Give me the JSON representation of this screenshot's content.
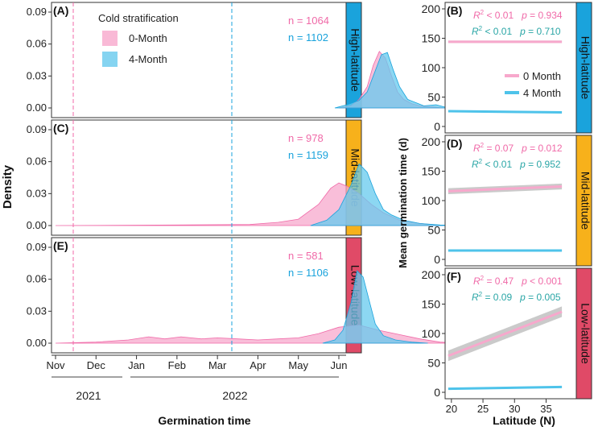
{
  "colors": {
    "pink": "#f06aa8",
    "pink_fill": "#f7a8cc",
    "blue": "#1aa3dc",
    "blue_fill": "#66c9ee",
    "strip_high": "#1aa3dc",
    "strip_mid": "#f7b11b",
    "strip_low": "#e04a67",
    "ci_gray": "#bdbdbd"
  },
  "shared": {
    "density_ylabel": "Density",
    "density_xlabel": "Germination time",
    "density_yticks": [
      "0.00",
      "0.03",
      "0.06",
      "0.09"
    ],
    "months": [
      "Nov",
      "Dec",
      "Jan",
      "Feb",
      "Mar",
      "Apr",
      "May",
      "Jun"
    ],
    "years": [
      "2021",
      "2022"
    ],
    "mgt_ylabel": "Mean germination time (d)",
    "mgt_xlabel": "Latitude (N)",
    "mgt_yticks": [
      "0",
      "50",
      "100",
      "150",
      "200"
    ],
    "mgt_xticks": [
      "20",
      "25",
      "30",
      "35"
    ],
    "legend": {
      "title": "Cold stratification",
      "items": [
        "0-Month",
        "4-Month"
      ]
    },
    "line_legend": {
      "items": [
        "0 Month",
        "4 Month"
      ]
    }
  },
  "chart_data": [
    {
      "type": "area",
      "panel": "(A)",
      "strip": "High-latitude",
      "n_labels": [
        "n = 1064",
        "n = 1102"
      ],
      "ylim": [
        0,
        0.095
      ],
      "xaxis": "months since Nov 1 2021",
      "series": [
        {
          "name": "0-Month",
          "x": [
            7.0,
            7.3,
            7.5,
            7.7,
            7.85,
            8.0,
            8.15,
            8.3,
            8.45,
            8.6,
            8.8,
            9.0,
            9.3,
            9.6,
            9.8
          ],
          "values": [
            0.0,
            0.002,
            0.008,
            0.02,
            0.04,
            0.053,
            0.047,
            0.03,
            0.015,
            0.008,
            0.004,
            0.002,
            0.001,
            0.0,
            0.0
          ]
        },
        {
          "name": "4-Month",
          "x": [
            6.9,
            7.2,
            7.5,
            7.7,
            7.9,
            8.05,
            8.2,
            8.35,
            8.5,
            8.7,
            8.9,
            9.1,
            9.4,
            9.7
          ],
          "values": [
            0.0,
            0.003,
            0.007,
            0.015,
            0.035,
            0.05,
            0.052,
            0.035,
            0.02,
            0.008,
            0.005,
            0.002,
            0.003,
            0.0
          ]
        }
      ]
    },
    {
      "type": "area",
      "panel": "(C)",
      "strip": "Mid-latitude",
      "n_labels": [
        "n = 978",
        "n = 1159"
      ],
      "ylim": [
        0,
        0.095
      ],
      "xaxis": "months since Nov 1 2021",
      "series": [
        {
          "name": "0-Month",
          "x": [
            0.0,
            3.0,
            4.8,
            5.5,
            6.0,
            6.5,
            6.8,
            7.0,
            7.2,
            7.5,
            7.8,
            8.1,
            8.5,
            9.0,
            9.6
          ],
          "values": [
            0.0,
            0.0005,
            0.001,
            0.003,
            0.006,
            0.02,
            0.035,
            0.04,
            0.037,
            0.03,
            0.02,
            0.012,
            0.005,
            0.002,
            0.0
          ]
        },
        {
          "name": "4-Month",
          "x": [
            6.3,
            6.7,
            7.0,
            7.3,
            7.5,
            7.7,
            7.9,
            8.1,
            8.3,
            8.6,
            9.0,
            9.5,
            10.0
          ],
          "values": [
            0.0,
            0.005,
            0.015,
            0.038,
            0.058,
            0.05,
            0.03,
            0.015,
            0.01,
            0.005,
            0.002,
            0.0005,
            0.0
          ]
        }
      ]
    },
    {
      "type": "area",
      "panel": "(E)",
      "strip": "Low-latitude",
      "n_labels": [
        "n = 581",
        "n = 1106"
      ],
      "ylim": [
        0,
        0.095
      ],
      "xaxis": "months since Nov 1 2021",
      "series": [
        {
          "name": "0-Month",
          "x": [
            0.0,
            1.0,
            1.8,
            2.3,
            2.7,
            3.1,
            3.6,
            4.0,
            4.5,
            5.0,
            5.5,
            6.0,
            6.5,
            7.0,
            7.5,
            8.0,
            8.5,
            9.0,
            9.5,
            10.0
          ],
          "values": [
            0.0,
            0.001,
            0.003,
            0.006,
            0.004,
            0.006,
            0.004,
            0.005,
            0.004,
            0.003,
            0.004,
            0.005,
            0.009,
            0.015,
            0.017,
            0.012,
            0.008,
            0.004,
            0.001,
            0.0
          ]
        },
        {
          "name": "4-Month",
          "x": [
            6.6,
            6.9,
            7.1,
            7.3,
            7.45,
            7.6,
            7.75,
            7.9,
            8.1,
            8.4,
            8.8,
            9.2
          ],
          "values": [
            0.0,
            0.003,
            0.012,
            0.038,
            0.068,
            0.062,
            0.04,
            0.018,
            0.007,
            0.003,
            0.001,
            0.0
          ]
        }
      ]
    },
    {
      "type": "line",
      "panel": "(B)",
      "strip": "High-latitude",
      "stats": [
        {
          "r2": "< 0.01",
          "p": "= 0.934"
        },
        {
          "r2": "< 0.01",
          "p": "= 0.710"
        }
      ],
      "ylim": [
        0,
        200
      ],
      "xlim": [
        19,
        38
      ],
      "series": [
        {
          "name": "0 Month",
          "x": [
            19.5,
            37.5
          ],
          "values": [
            144,
            144
          ],
          "ci": [
            2,
            2
          ]
        },
        {
          "name": "4 Month",
          "x": [
            19.5,
            37.5
          ],
          "values": [
            26,
            24
          ],
          "ci": [
            1.5,
            1.5
          ]
        }
      ]
    },
    {
      "type": "line",
      "panel": "(D)",
      "strip": "Mid-latitude",
      "stats": [
        {
          "r2": "= 0.07",
          "p": "= 0.012"
        },
        {
          "r2": "< 0.01",
          "p": "= 0.952"
        }
      ],
      "ylim": [
        0,
        200
      ],
      "xlim": [
        19,
        38
      ],
      "series": [
        {
          "name": "0 Month",
          "x": [
            19.5,
            37.5
          ],
          "values": [
            116,
            124
          ],
          "ci": [
            5,
            5
          ]
        },
        {
          "name": "4 Month",
          "x": [
            19.5,
            37.5
          ],
          "values": [
            15,
            15
          ],
          "ci": [
            1.5,
            1.5
          ]
        }
      ]
    },
    {
      "type": "line",
      "panel": "(F)",
      "strip": "Low-latitude",
      "stats": [
        {
          "r2": "= 0.47",
          "p": "< 0.001"
        },
        {
          "r2": "= 0.09",
          "p": "= 0.005"
        }
      ],
      "ylim": [
        0,
        200
      ],
      "xlim": [
        19,
        38
      ],
      "series": [
        {
          "name": "0 Month",
          "x": [
            19.5,
            37.5
          ],
          "values": [
            62,
            137
          ],
          "ci": [
            9,
            9
          ]
        },
        {
          "name": "4 Month",
          "x": [
            19.5,
            37.5
          ],
          "values": [
            6,
            9
          ],
          "ci": [
            1.5,
            1.5
          ]
        }
      ]
    }
  ]
}
